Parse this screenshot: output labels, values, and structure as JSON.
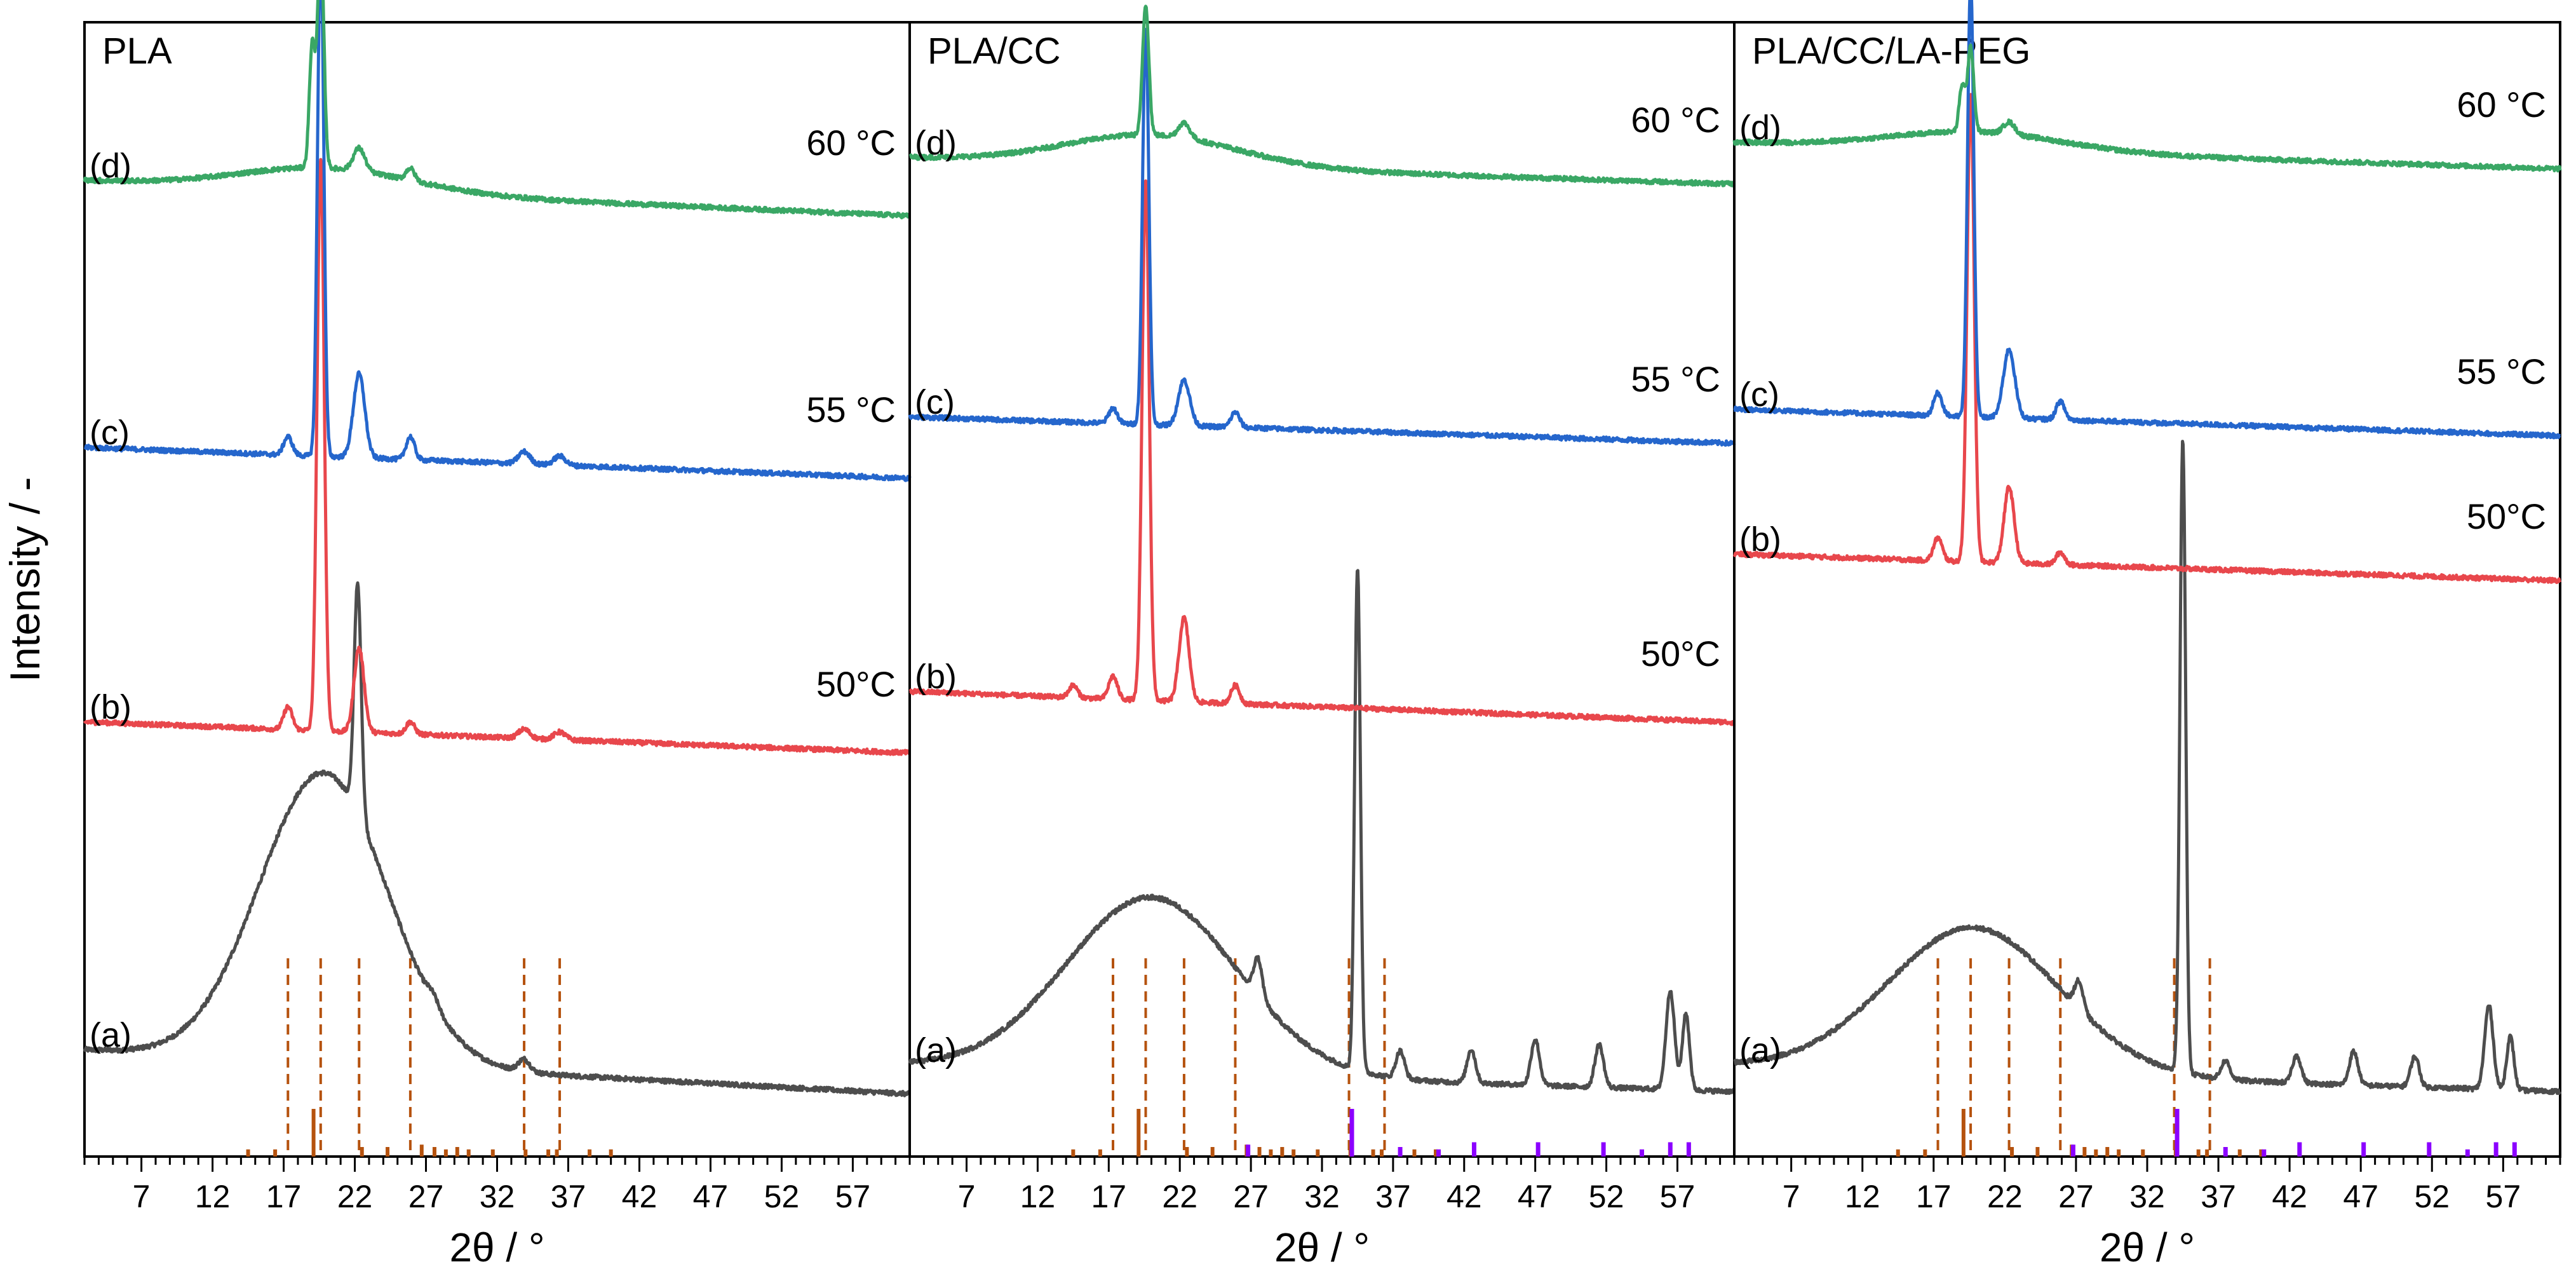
{
  "chart_data": {
    "type": "line",
    "ylabel": "Intensity / -",
    "xlabel": "2θ / °",
    "xlim": [
      3,
      61
    ],
    "xticks": [
      7,
      12,
      17,
      22,
      27,
      32,
      37,
      42,
      47,
      52,
      57
    ],
    "reference_lines_deg": [
      17.3,
      19.6,
      22.3,
      25.9,
      33.9,
      36.4
    ],
    "colors": {
      "a": "#4d4d4d",
      "b": "#e8474c",
      "c": "#2566cc",
      "d": "#3aa765",
      "ref": "#b5520e",
      "calcite": "#8b00ff"
    },
    "pla_ref_ticks": [
      {
        "x": 14.5,
        "h": 0.15
      },
      {
        "x": 16.4,
        "h": 0.15
      },
      {
        "x": 19.1,
        "h": 1.0
      },
      {
        "x": 22.5,
        "h": 0.2
      },
      {
        "x": 24.3,
        "h": 0.2
      },
      {
        "x": 26.7,
        "h": 0.25
      },
      {
        "x": 27.6,
        "h": 0.2
      },
      {
        "x": 28.4,
        "h": 0.15
      },
      {
        "x": 29.2,
        "h": 0.2
      },
      {
        "x": 30.0,
        "h": 0.15
      },
      {
        "x": 31.7,
        "h": 0.15
      },
      {
        "x": 34.0,
        "h": 0.15
      },
      {
        "x": 35.6,
        "h": 0.15
      },
      {
        "x": 36.2,
        "h": 0.15
      },
      {
        "x": 38.5,
        "h": 0.15
      },
      {
        "x": 40.0,
        "h": 0.15
      }
    ],
    "cc_ref_ticks": [
      {
        "x": 26.8,
        "h": 0.25
      },
      {
        "x": 34.1,
        "h": 1.0
      },
      {
        "x": 37.5,
        "h": 0.2
      },
      {
        "x": 40.2,
        "h": 0.15
      },
      {
        "x": 42.7,
        "h": 0.3
      },
      {
        "x": 47.2,
        "h": 0.3
      },
      {
        "x": 51.8,
        "h": 0.3
      },
      {
        "x": 54.5,
        "h": 0.15
      },
      {
        "x": 56.5,
        "h": 0.3
      },
      {
        "x": 57.8,
        "h": 0.3
      }
    ],
    "panels": [
      {
        "title": "PLA",
        "cc_ticks": false,
        "series": [
          {
            "key": "a",
            "label": "(a)",
            "temp": "",
            "base": 70,
            "slope": 0.5,
            "hump": {
              "x": 19.8,
              "h": 190,
              "w": 4.5
            },
            "peaks": [
              [
                22.2,
                150,
                0.25
              ],
              [
                27.5,
                6,
                0.4
              ],
              [
                33.9,
                8,
                0.4
              ]
            ]
          },
          {
            "key": "b",
            "label": "(b)",
            "temp": "50°C",
            "base": 285,
            "slope": 0.35,
            "hump": null,
            "peaks": [
              [
                19.6,
                375,
                0.25
              ],
              [
                17.3,
                15,
                0.3
              ],
              [
                22.3,
                55,
                0.35
              ],
              [
                25.9,
                8,
                0.3
              ],
              [
                33.9,
                6,
                0.4
              ],
              [
                36.4,
                5,
                0.4
              ]
            ]
          },
          {
            "key": "c",
            "label": "(c)",
            "temp": "55 °C",
            "base": 465,
            "slope": 0.35,
            "hump": null,
            "peaks": [
              [
                19.6,
                335,
                0.22
              ],
              [
                17.3,
                12,
                0.3
              ],
              [
                22.3,
                55,
                0.4
              ],
              [
                25.9,
                15,
                0.3
              ],
              [
                33.9,
                8,
                0.4
              ],
              [
                36.4,
                6,
                0.4
              ]
            ]
          },
          {
            "key": "d",
            "label": "(d)",
            "temp": "60 °C",
            "base": 640,
            "slope": 0.4,
            "hump": {
              "x": 20.0,
              "h": 15,
              "w": 6
            },
            "peaks": [
              [
                19.6,
                150,
                0.22
              ],
              [
                19.0,
                80,
                0.2
              ],
              [
                22.3,
                15,
                0.4
              ],
              [
                25.9,
                8,
                0.3
              ]
            ]
          }
        ]
      },
      {
        "title": "PLA/CC",
        "cc_ticks": true,
        "series": [
          {
            "key": "a",
            "label": "(a)",
            "temp": "",
            "base": 60,
            "slope": 0.3,
            "hump": {
              "x": 20.0,
              "h": 115,
              "w": 6
            },
            "peaks": [
              [
                34.5,
                330,
                0.2
              ],
              [
                27.5,
                25,
                0.3
              ],
              [
                37.5,
                18,
                0.3
              ],
              [
                42.5,
                22,
                0.3
              ],
              [
                47.0,
                30,
                0.3
              ],
              [
                51.5,
                28,
                0.3
              ],
              [
                56.5,
                65,
                0.3
              ],
              [
                57.6,
                50,
                0.25
              ]
            ]
          },
          {
            "key": "b",
            "label": "(b)",
            "temp": "50°C",
            "base": 305,
            "slope": 0.35,
            "hump": null,
            "peaks": [
              [
                19.6,
                340,
                0.25
              ],
              [
                17.3,
                15,
                0.3
              ],
              [
                22.3,
                55,
                0.35
              ],
              [
                25.9,
                12,
                0.3
              ],
              [
                14.5,
                8,
                0.3
              ]
            ]
          },
          {
            "key": "c",
            "label": "(c)",
            "temp": "55 °C",
            "base": 485,
            "slope": 0.3,
            "hump": null,
            "peaks": [
              [
                19.6,
                260,
                0.22
              ],
              [
                17.3,
                10,
                0.3
              ],
              [
                22.3,
                30,
                0.4
              ],
              [
                25.9,
                10,
                0.3
              ]
            ]
          },
          {
            "key": "d",
            "label": "(d)",
            "temp": "60 °C",
            "base": 655,
            "slope": 0.3,
            "hump": {
              "x": 20.0,
              "h": 20,
              "w": 6
            },
            "peaks": [
              [
                19.6,
                85,
                0.22
              ],
              [
                22.3,
                10,
                0.4
              ]
            ]
          }
        ]
      },
      {
        "title": "PLA/CC/LA-PEG",
        "cc_ticks": true,
        "series": [
          {
            "key": "a",
            "label": "(a)",
            "temp": "",
            "base": 60,
            "slope": 0.3,
            "hump": {
              "x": 19.8,
              "h": 95,
              "w": 6
            },
            "peaks": [
              [
                34.5,
                415,
                0.2
              ],
              [
                27.2,
                18,
                0.3
              ],
              [
                37.5,
                12,
                0.3
              ],
              [
                42.5,
                18,
                0.3
              ],
              [
                46.5,
                22,
                0.3
              ],
              [
                50.8,
                20,
                0.3
              ],
              [
                56.0,
                55,
                0.3
              ],
              [
                57.5,
                35,
                0.25
              ]
            ]
          },
          {
            "key": "b",
            "label": "(b)",
            "temp": "50°C",
            "base": 395,
            "slope": 0.3,
            "hump": null,
            "peaks": [
              [
                19.6,
                305,
                0.25
              ],
              [
                17.3,
                15,
                0.3
              ],
              [
                22.3,
                50,
                0.35
              ],
              [
                25.9,
                8,
                0.3
              ]
            ]
          },
          {
            "key": "c",
            "label": "(c)",
            "temp": "55 °C",
            "base": 490,
            "slope": 0.3,
            "hump": null,
            "peaks": [
              [
                19.6,
                285,
                0.22
              ],
              [
                17.3,
                15,
                0.3
              ],
              [
                22.3,
                45,
                0.4
              ],
              [
                25.9,
                12,
                0.3
              ]
            ]
          },
          {
            "key": "d",
            "label": "(d)",
            "temp": "60 °C",
            "base": 665,
            "slope": 0.3,
            "hump": {
              "x": 20.0,
              "h": 12,
              "w": 6
            },
            "peaks": [
              [
                19.6,
                55,
                0.22
              ],
              [
                19.0,
                30,
                0.2
              ],
              [
                22.3,
                8,
                0.4
              ]
            ]
          }
        ]
      }
    ]
  }
}
